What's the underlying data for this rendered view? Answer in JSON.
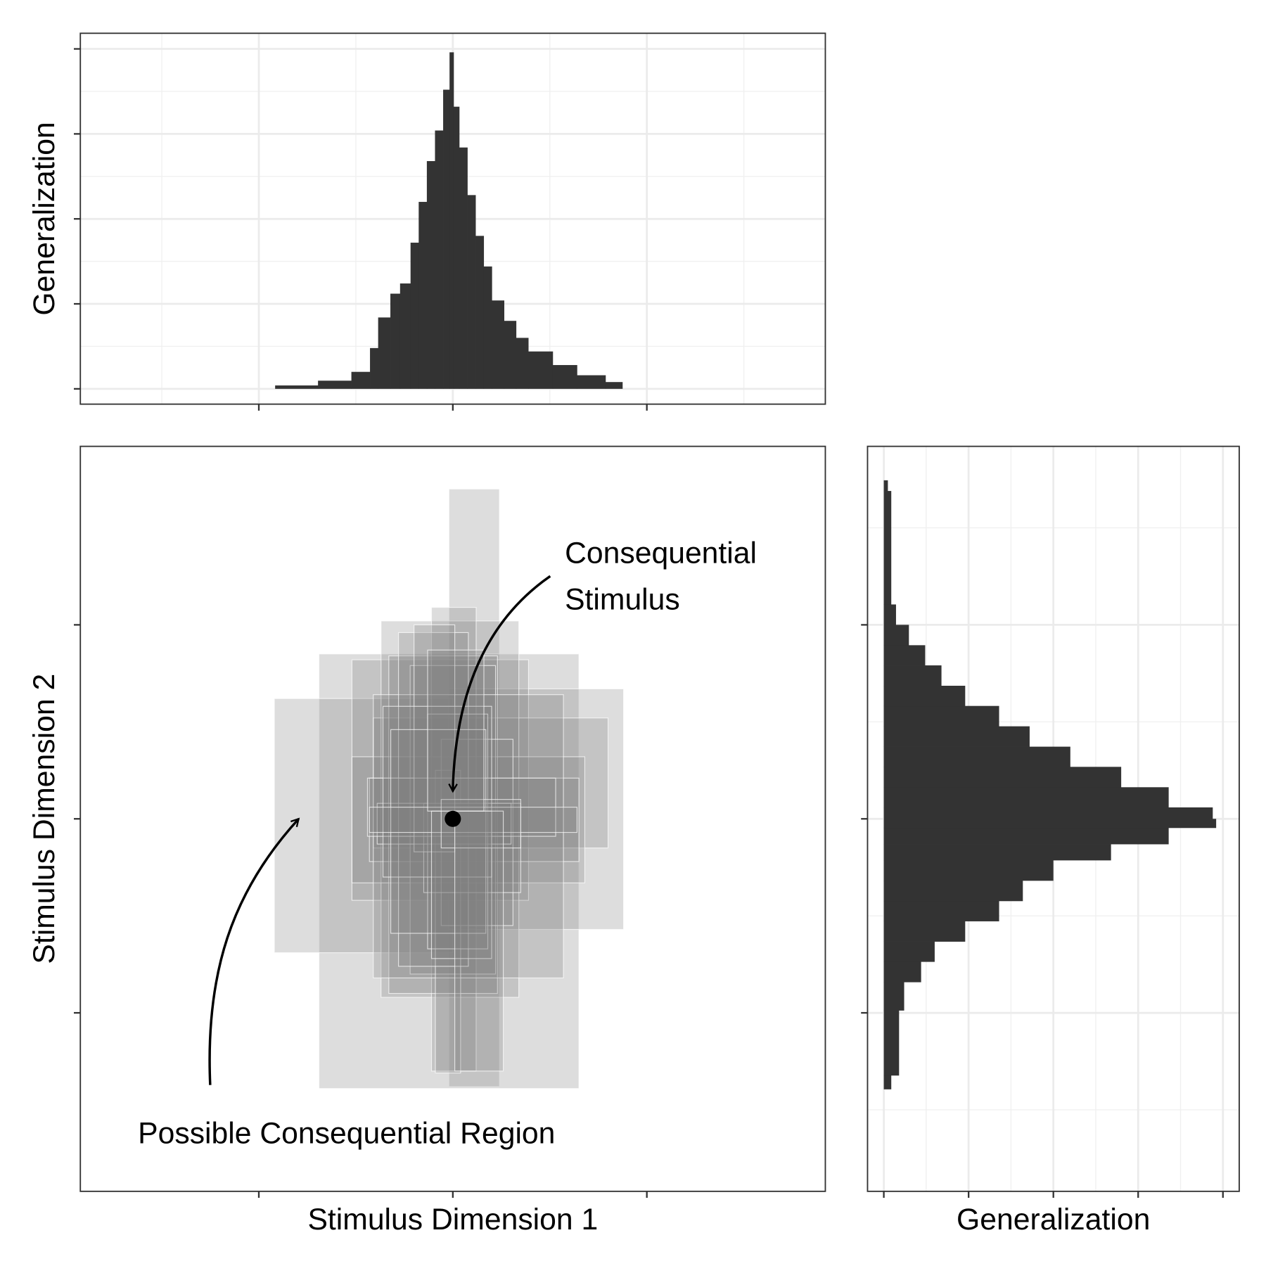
{
  "chart_data": [
    {
      "type": "histogram",
      "ylabel": "Generalization",
      "color": "#333333",
      "grid": true,
      "bins": [
        -0.916,
        -0.695,
        -0.523,
        -0.427,
        -0.385,
        -0.322,
        -0.272,
        -0.218,
        -0.176,
        -0.134,
        -0.092,
        -0.05,
        -0.017,
        0.004,
        0.033,
        0.075,
        0.117,
        0.159,
        0.201,
        0.264,
        0.326,
        0.389,
        0.515,
        0.64,
        0.787,
        0.874
      ],
      "values": [
        0.01,
        0.024,
        0.05,
        0.12,
        0.21,
        0.28,
        0.31,
        0.43,
        0.55,
        0.67,
        0.76,
        0.88,
        0.99,
        0.83,
        0.71,
        0.57,
        0.45,
        0.36,
        0.26,
        0.2,
        0.15,
        0.11,
        0.07,
        0.04,
        0.02
      ],
      "xlim": [
        -1.92,
        1.92
      ],
      "xticks": [
        -1,
        0,
        1
      ],
      "ylim": [
        -0.045,
        1.046
      ],
      "yticks": [
        0,
        0.25,
        0.5,
        0.75,
        1
      ]
    },
    {
      "type": "rect",
      "xlabel": "Stimulus Dimension 1",
      "ylabel": "Stimulus Dimension 2",
      "color": "#808080",
      "alpha": 0.27,
      "xlim": [
        -1.92,
        1.92
      ],
      "xticks": [
        -1,
        0,
        1
      ],
      "ylim": [
        -1.92,
        1.92
      ],
      "yticks": [
        -1,
        0,
        1
      ],
      "rects": {
        "xmin": [
          -0.02,
          -0.69,
          -0.92,
          -0.02,
          -0.52,
          -0.41,
          -0.37,
          -0.11,
          -0.52,
          -0.43,
          -0.33,
          -0.22,
          -0.41,
          -0.09,
          -0.06,
          -0.28,
          -0.15,
          -0.39,
          -0.13,
          -0.44,
          -0.2,
          -0.36,
          -0.32,
          -0.43,
          -0.11,
          -0.06,
          -0.13,
          0.01
        ],
        "xmax": [
          0.24,
          0.65,
          0.0,
          0.88,
          0.39,
          0.8,
          0.34,
          0.12,
          0.68,
          0.65,
          0.23,
          0.22,
          0.57,
          0.04,
          0.31,
          0.08,
          0.35,
          0.3,
          0.18,
          0.53,
          0.01,
          0.2,
          0.17,
          0.64,
          0.2,
          0.35,
          0.16,
          0.26
        ],
        "ymin": [
          -1.38,
          -1.39,
          -0.69,
          -0.57,
          -0.42,
          -0.15,
          -0.92,
          -1.3,
          -0.33,
          -0.22,
          -0.9,
          -0.8,
          -0.82,
          -1.31,
          -0.55,
          -0.76,
          -0.38,
          -0.13,
          -0.67,
          -0.09,
          -0.17,
          -0.3,
          -0.59,
          -0.07,
          -0.72,
          -0.15,
          0.04,
          -1.3
        ],
        "ymax": [
          1.7,
          0.85,
          0.62,
          0.67,
          0.82,
          0.52,
          1.02,
          1.09,
          0.32,
          0.21,
          0.84,
          0.79,
          0.64,
          0.25,
          0.41,
          0.96,
          0.08,
          0.08,
          0.54,
          0.21,
          1.0,
          0.58,
          0.46,
          0.06,
          0.04,
          0.1,
          0.87,
          0.04
        ]
      },
      "point": {
        "x": 0,
        "y": 0
      },
      "annotations": [
        {
          "text": [
            "Consequential",
            "Stimulus"
          ]
        },
        {
          "text": "Possible Consequential Region"
        }
      ]
    },
    {
      "type": "histogram",
      "orientation": "horizontal",
      "xlabel": "Generalization",
      "color": "#333333",
      "grid": true,
      "bins": [
        -1.393,
        -1.322,
        -0.987,
        -0.841,
        -0.736,
        -0.632,
        -0.527,
        -0.423,
        -0.318,
        -0.213,
        -0.13,
        -0.046,
        0,
        0.059,
        0.163,
        0.268,
        0.372,
        0.477,
        0.582,
        0.686,
        0.791,
        0.895,
        1.0,
        1.105,
        1.69,
        1.745
      ],
      "values": [
        0.022,
        0.045,
        0.06,
        0.11,
        0.15,
        0.24,
        0.34,
        0.41,
        0.5,
        0.67,
        0.84,
        0.98,
        0.97,
        0.84,
        0.7,
        0.55,
        0.43,
        0.34,
        0.24,
        0.17,
        0.122,
        0.074,
        0.036,
        0.022,
        0.012
      ],
      "xlim": [
        -0.048,
        1.048
      ],
      "xticks": [
        0,
        0.25,
        0.5,
        0.75,
        1
      ],
      "ylim": [
        -1.92,
        1.92
      ],
      "yticks": [
        -1,
        0,
        1
      ]
    }
  ]
}
